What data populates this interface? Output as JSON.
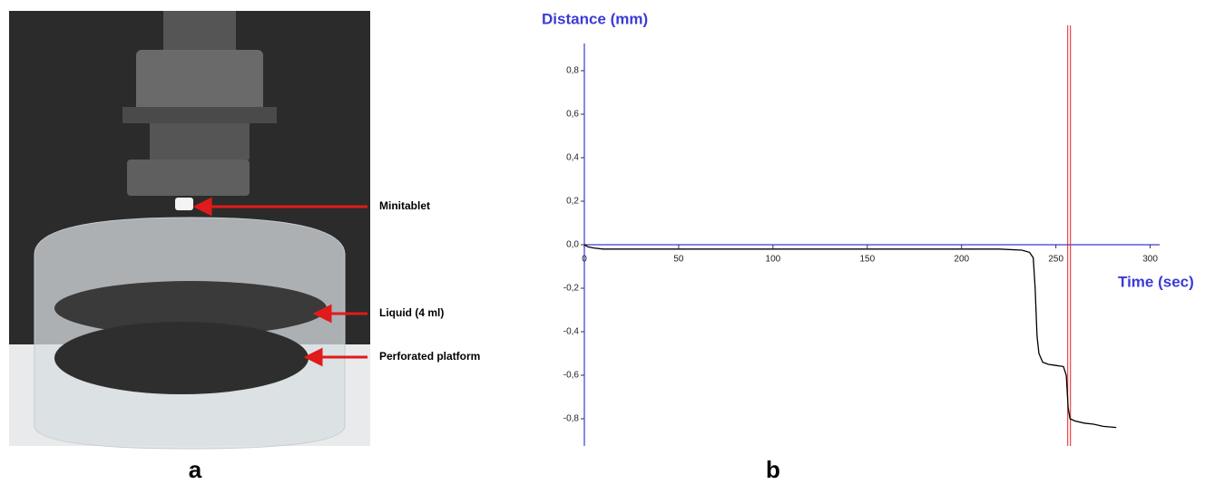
{
  "panel_labels": [
    "a",
    "b"
  ],
  "photo_annotations": [
    "Minitablet",
    "Liquid (4 ml)",
    "Perforated platform"
  ],
  "chart_data": {
    "type": "line",
    "y_label": "Distance (mm)",
    "x_label": "Time (sec)",
    "x": [
      0,
      2,
      5,
      10,
      50,
      100,
      150,
      200,
      220,
      232,
      236,
      238,
      239,
      240,
      241,
      243,
      246,
      250,
      254,
      255.5,
      256.5,
      257.5,
      260,
      265,
      270,
      275,
      282
    ],
    "series": [
      {
        "color": "#000000",
        "values": [
          0,
          -0.01,
          -0.015,
          -0.02,
          -0.02,
          -0.02,
          -0.02,
          -0.02,
          -0.02,
          -0.025,
          -0.035,
          -0.06,
          -0.2,
          -0.42,
          -0.5,
          -0.54,
          -0.55,
          -0.555,
          -0.56,
          -0.6,
          -0.75,
          -0.8,
          -0.81,
          -0.82,
          -0.825,
          -0.835,
          -0.84
        ]
      }
    ],
    "vlines": [
      {
        "value": 257,
        "color": "#e02020"
      }
    ],
    "axis_color": "#3b3bd6",
    "xlim": [
      0,
      305
    ],
    "ylim": [
      -0.925,
      0.925
    ],
    "xticks": [
      0,
      50,
      100,
      150,
      200,
      250,
      300
    ],
    "yticks": [
      {
        "value": -0.8,
        "label": "-0,8"
      },
      {
        "value": -0.6,
        "label": "-0,6"
      },
      {
        "value": -0.4,
        "label": "-0,4"
      },
      {
        "value": -0.2,
        "label": "-0,2"
      },
      {
        "value": 0,
        "label": "0,0"
      },
      {
        "value": 0.2,
        "label": "0,2"
      },
      {
        "value": 0.4,
        "label": "0,4"
      },
      {
        "value": 0.6,
        "label": "0,6"
      },
      {
        "value": 0.8,
        "label": "0,8"
      }
    ]
  }
}
